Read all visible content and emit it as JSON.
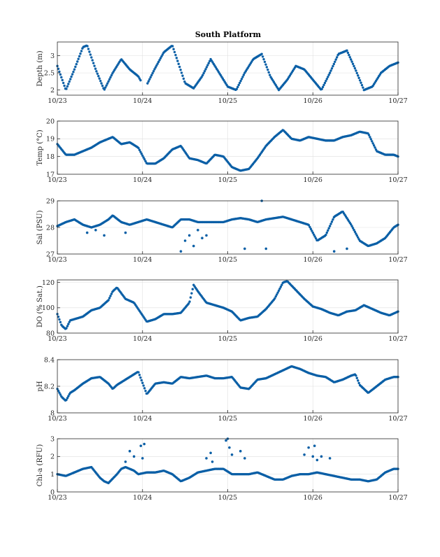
{
  "title": "South Platform",
  "colors": {
    "series": "#0a5fa6",
    "grid": "#dfdfdf",
    "axis": "#262626"
  },
  "chart_data": [
    {
      "type": "scatter",
      "ylabel": "Depth (m)",
      "ylim": [
        1.85,
        3.4
      ],
      "yticks": [
        2,
        2.5,
        3
      ],
      "xlim": [
        0,
        4
      ],
      "xticks": [
        0,
        1,
        2,
        3,
        4
      ],
      "xticklabels": [
        "10/23",
        "10/24",
        "10/25",
        "10/26",
        "10/27"
      ],
      "grid": true,
      "series": [
        {
          "x": [
            0,
            0.1,
            0.2,
            0.3,
            0.35,
            0.45,
            0.55,
            0.65,
            0.75,
            0.85,
            0.95,
            1.03,
            1.14,
            1.25,
            1.35,
            1.5,
            1.6,
            1.7,
            1.8,
            1.9,
            2,
            2.1,
            2.2,
            2.3,
            2.4,
            2.5,
            2.6,
            2.7,
            2.8,
            2.9,
            3,
            3.1,
            3.2,
            3.3,
            3.4,
            3.5,
            3.6,
            3.7,
            3.8,
            3.9,
            4
          ],
          "values": [
            2.7,
            2.0,
            2.6,
            3.25,
            3.3,
            2.6,
            2.0,
            2.5,
            2.9,
            2.6,
            2.4,
            2.05,
            2.6,
            3.1,
            3.3,
            2.2,
            2.05,
            2.4,
            2.9,
            2.5,
            2.1,
            2.0,
            2.5,
            2.9,
            3.05,
            2.4,
            2.0,
            2.3,
            2.7,
            2.6,
            2.3,
            2.0,
            2.5,
            3.05,
            3.15,
            2.6,
            2.0,
            2.1,
            2.5,
            2.7,
            2.8
          ]
        }
      ]
    },
    {
      "type": "scatter",
      "ylabel": "Temp (°C)",
      "ylim": [
        17,
        20
      ],
      "yticks": [
        17,
        18,
        19,
        20
      ],
      "xlim": [
        0,
        4
      ],
      "xticks": [
        0,
        1,
        2,
        3,
        4
      ],
      "xticklabels": [
        "10/23",
        "10/24",
        "10/25",
        "10/26",
        "10/27"
      ],
      "grid": true,
      "series": [
        {
          "x": [
            0,
            0.1,
            0.2,
            0.3,
            0.4,
            0.5,
            0.6,
            0.65,
            0.75,
            0.85,
            0.95,
            1.05,
            1.15,
            1.25,
            1.35,
            1.45,
            1.55,
            1.65,
            1.75,
            1.85,
            1.95,
            2.05,
            2.15,
            2.25,
            2.35,
            2.45,
            2.55,
            2.65,
            2.75,
            2.85,
            2.95,
            3.05,
            3.15,
            3.25,
            3.35,
            3.45,
            3.55,
            3.65,
            3.75,
            3.85,
            3.95,
            4
          ],
          "values": [
            18.7,
            18.1,
            18.1,
            18.3,
            18.5,
            18.8,
            19.0,
            19.1,
            18.7,
            18.8,
            18.5,
            17.6,
            17.6,
            17.9,
            18.4,
            18.6,
            17.9,
            17.8,
            17.6,
            18.1,
            18.0,
            17.4,
            17.2,
            17.3,
            17.9,
            18.6,
            19.1,
            19.5,
            19.0,
            18.9,
            19.1,
            19.0,
            18.9,
            18.9,
            19.1,
            19.2,
            19.4,
            19.3,
            18.3,
            18.1,
            18.1,
            18.0
          ]
        }
      ]
    },
    {
      "type": "scatter",
      "ylabel": "Sal (PSU)",
      "ylim": [
        27,
        29
      ],
      "yticks": [
        27,
        28,
        29
      ],
      "xlim": [
        0,
        4
      ],
      "xticks": [
        0,
        1,
        2,
        3,
        4
      ],
      "xticklabels": [
        "10/23",
        "10/24",
        "10/25",
        "10/26",
        "10/27"
      ],
      "grid": true,
      "series": [
        {
          "x": [
            0,
            0.1,
            0.2,
            0.3,
            0.4,
            0.5,
            0.6,
            0.65,
            0.75,
            0.85,
            0.95,
            1.05,
            1.15,
            1.25,
            1.35,
            1.45,
            1.55,
            1.65,
            1.75,
            1.85,
            1.95,
            2.05,
            2.15,
            2.25,
            2.35,
            2.45,
            2.55,
            2.65,
            2.75,
            2.85,
            2.95,
            3.05,
            3.15,
            3.25,
            3.35,
            3.45,
            3.55,
            3.65,
            3.75,
            3.85,
            3.95,
            4
          ],
          "values": [
            28.05,
            28.2,
            28.3,
            28.1,
            28.0,
            28.1,
            28.3,
            28.45,
            28.2,
            28.1,
            28.2,
            28.3,
            28.2,
            28.1,
            28.0,
            28.3,
            28.3,
            28.2,
            28.2,
            28.2,
            28.2,
            28.3,
            28.35,
            28.3,
            28.2,
            28.3,
            28.35,
            28.4,
            28.3,
            28.2,
            28.1,
            27.5,
            27.7,
            28.4,
            28.6,
            28.1,
            27.5,
            27.3,
            27.4,
            27.6,
            28.0,
            28.1
          ]
        },
        {
          "x": [
            0.35,
            0.45,
            0.55,
            0.8,
            1.45,
            1.5,
            1.55,
            1.6,
            1.65,
            1.7,
            1.75,
            2.2,
            2.4,
            2.45,
            3.25,
            3.4
          ],
          "values": [
            27.8,
            27.9,
            27.7,
            27.8,
            27.1,
            27.5,
            27.7,
            27.3,
            27.9,
            27.6,
            27.7,
            27.2,
            29,
            27.2,
            27.1,
            27.2
          ]
        }
      ]
    },
    {
      "type": "scatter",
      "ylabel": "DO (% Sat.)",
      "ylim": [
        80,
        122
      ],
      "yticks": [
        80,
        100,
        120
      ],
      "xlim": [
        0,
        4
      ],
      "xticks": [
        0,
        1,
        2,
        3,
        4
      ],
      "xticklabels": [
        "10/23",
        "10/24",
        "10/25",
        "10/26",
        "10/27"
      ],
      "grid": true,
      "series": [
        {
          "x": [
            0,
            0.05,
            0.1,
            0.15,
            0.2,
            0.3,
            0.4,
            0.5,
            0.6,
            0.65,
            0.7,
            0.8,
            0.9,
            0.95,
            1.05,
            1.15,
            1.25,
            1.35,
            1.45,
            1.55,
            1.6,
            1.65,
            1.75,
            1.85,
            1.95,
            2.05,
            2.15,
            2.25,
            2.35,
            2.45,
            2.55,
            2.65,
            2.7,
            2.8,
            2.9,
            3.0,
            3.1,
            3.2,
            3.3,
            3.4,
            3.5,
            3.6,
            3.7,
            3.8,
            3.9,
            4
          ],
          "values": [
            95,
            86,
            83,
            90,
            91,
            93,
            98,
            100,
            106,
            113,
            116,
            107,
            104,
            99,
            89,
            91,
            95,
            95,
            96,
            104,
            118,
            113,
            104,
            102,
            100,
            97,
            90,
            92,
            93,
            99,
            107,
            120,
            121,
            114,
            107,
            101,
            99,
            96,
            94,
            97,
            98,
            102,
            99,
            96,
            94,
            97
          ]
        }
      ]
    },
    {
      "type": "scatter",
      "ylabel": "pH",
      "ylim": [
        8,
        8.4
      ],
      "yticks": [
        8,
        8.2,
        8.4
      ],
      "xlim": [
        0,
        4
      ],
      "xticks": [
        0,
        1,
        2,
        3,
        4
      ],
      "xticklabels": [
        "10/23",
        "10/24",
        "10/25",
        "10/26",
        "10/27"
      ],
      "grid": true,
      "series": [
        {
          "x": [
            0,
            0.05,
            0.1,
            0.15,
            0.2,
            0.3,
            0.4,
            0.5,
            0.6,
            0.65,
            0.7,
            0.8,
            0.9,
            0.95,
            1.05,
            1.15,
            1.25,
            1.35,
            1.45,
            1.55,
            1.65,
            1.75,
            1.85,
            1.95,
            2.05,
            2.15,
            2.25,
            2.35,
            2.45,
            2.55,
            2.65,
            2.75,
            2.85,
            2.95,
            3.05,
            3.15,
            3.25,
            3.35,
            3.45,
            3.5,
            3.55,
            3.65,
            3.75,
            3.85,
            3.95,
            4
          ],
          "values": [
            8.18,
            8.12,
            8.09,
            8.15,
            8.17,
            8.22,
            8.26,
            8.27,
            8.22,
            8.18,
            8.21,
            8.25,
            8.29,
            8.31,
            8.14,
            8.22,
            8.23,
            8.22,
            8.27,
            8.26,
            8.27,
            8.28,
            8.26,
            8.26,
            8.27,
            8.19,
            8.18,
            8.25,
            8.26,
            8.29,
            8.32,
            8.35,
            8.33,
            8.3,
            8.28,
            8.27,
            8.23,
            8.25,
            8.28,
            8.29,
            8.21,
            8.15,
            8.2,
            8.25,
            8.27,
            8.27
          ]
        }
      ]
    },
    {
      "type": "scatter",
      "ylabel": "Chl-a (RFU)",
      "ylim": [
        0,
        3
      ],
      "yticks": [
        0,
        1,
        2,
        3
      ],
      "xlim": [
        0,
        4
      ],
      "xticks": [
        0,
        1,
        2,
        3,
        4
      ],
      "xticklabels": [
        "10/23",
        "10/24",
        "10/25",
        "10/26",
        "10/27"
      ],
      "grid": true,
      "series": [
        {
          "x": [
            0,
            0.1,
            0.2,
            0.3,
            0.4,
            0.5,
            0.55,
            0.6,
            0.7,
            0.75,
            0.8,
            0.9,
            0.95,
            1.05,
            1.15,
            1.25,
            1.35,
            1.45,
            1.55,
            1.65,
            1.75,
            1.85,
            1.95,
            2.05,
            2.15,
            2.25,
            2.35,
            2.45,
            2.55,
            2.65,
            2.75,
            2.85,
            2.95,
            3.05,
            3.15,
            3.25,
            3.35,
            3.45,
            3.55,
            3.65,
            3.75,
            3.85,
            3.95,
            4
          ],
          "values": [
            1.0,
            0.9,
            1.1,
            1.3,
            1.4,
            0.8,
            0.6,
            0.5,
            1.0,
            1.3,
            1.4,
            1.2,
            1.0,
            1.1,
            1.1,
            1.2,
            1.0,
            0.6,
            0.8,
            1.1,
            1.2,
            1.3,
            1.3,
            1.0,
            1.0,
            1.0,
            1.1,
            0.9,
            0.7,
            0.7,
            0.9,
            1.0,
            1.0,
            1.1,
            1.0,
            0.9,
            0.8,
            0.7,
            0.7,
            0.6,
            0.7,
            1.1,
            1.3,
            1.3
          ]
        },
        {
          "x": [
            0.8,
            0.85,
            0.9,
            0.98,
            1.0,
            1.02,
            1.75,
            1.8,
            1.82,
            1.98,
            2.0,
            2.02,
            2.05,
            2.15,
            2.2,
            2.9,
            2.95,
            3.0,
            3.02,
            3.05,
            3.1,
            3.2
          ],
          "values": [
            1.7,
            2.3,
            2.0,
            2.6,
            1.9,
            2.7,
            1.9,
            2.2,
            1.7,
            2.9,
            3.0,
            2.5,
            2.1,
            2.3,
            1.9,
            2.1,
            2.5,
            2.0,
            2.6,
            1.8,
            2.0,
            1.9
          ]
        }
      ]
    }
  ]
}
